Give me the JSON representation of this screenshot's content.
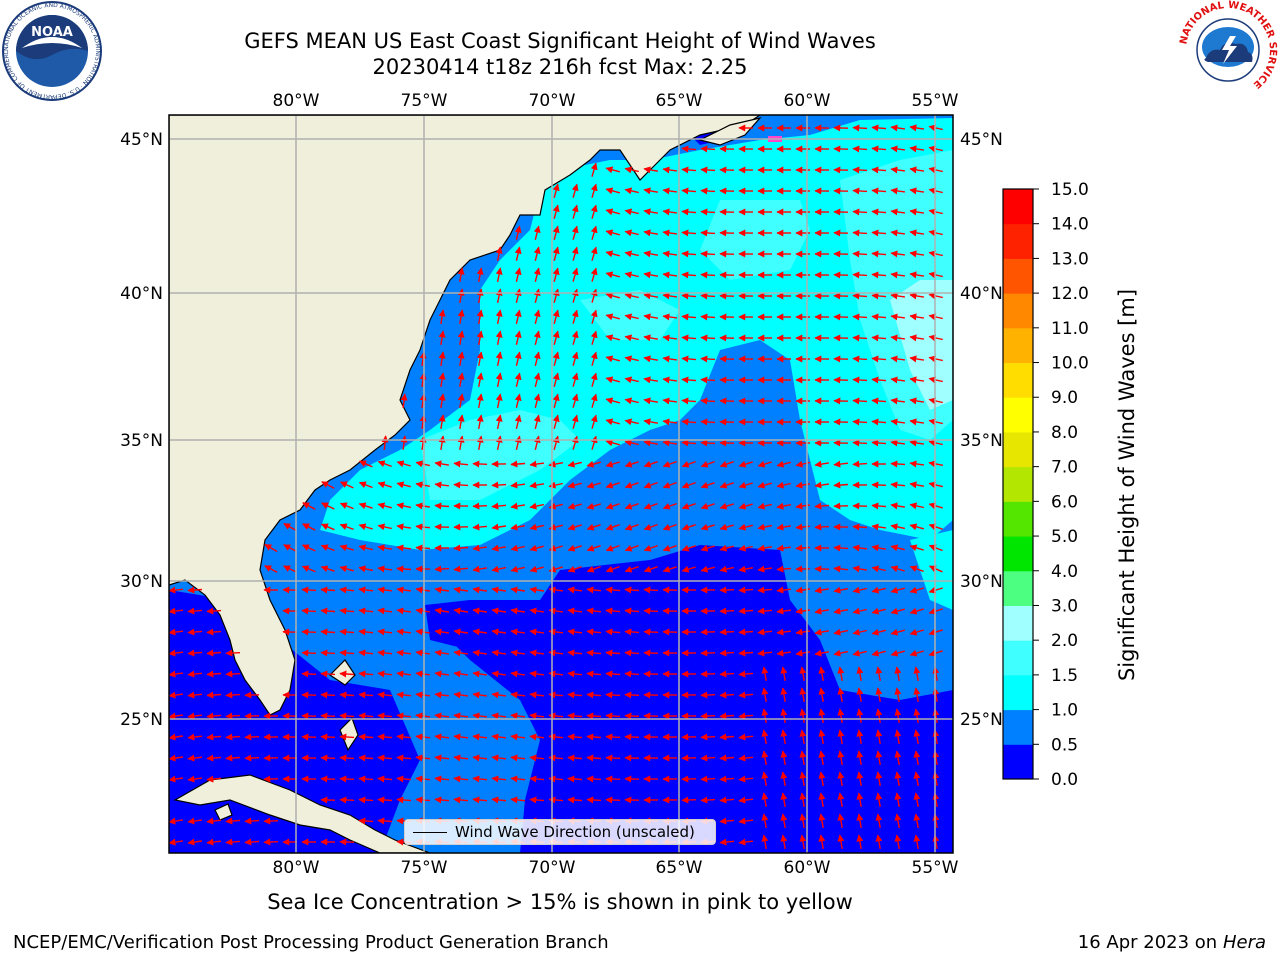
{
  "title_line1": "GEFS MEAN US East Coast Significant Height of Wind Waves",
  "title_line2": "20230414 t18z 216h fcst   Max: 2.25",
  "ice_note": "Sea Ice Concentration > 15% is shown in pink to yellow",
  "footer_left": "NCEP/EMC/Verification Post Processing Product Generation Branch",
  "footer_date": "16 Apr 2023 on ",
  "footer_host": "Hera",
  "legend_label": "Wind Wave Direction (unscaled)",
  "colorbar": {
    "label": "Significant Height of Wind Waves [m]",
    "ticks": [
      "0.0",
      "0.5",
      "1.0",
      "1.5",
      "2.0",
      "3.0",
      "4.0",
      "5.0",
      "6.0",
      "7.0",
      "8.0",
      "9.0",
      "10.0",
      "11.0",
      "12.0",
      "13.0",
      "14.0",
      "15.0"
    ],
    "colors": [
      "#0000ff",
      "#0080ff",
      "#00ffff",
      "#40ffff",
      "#a0ffff",
      "#4dff80",
      "#00e600",
      "#55e600",
      "#b3e600",
      "#e6e600",
      "#ffff00",
      "#ffdd00",
      "#ffb300",
      "#ff8800",
      "#ff5500",
      "#ff2200",
      "#ff0000"
    ]
  },
  "map": {
    "lon_labels": [
      "80°W",
      "75°W",
      "70°W",
      "65°W",
      "60°W",
      "55°W"
    ],
    "lat_labels": [
      "45°N",
      "40°N",
      "35°N",
      "30°N",
      "25°N"
    ],
    "land_color": "#efefdc",
    "arrow_color": "#ff0000",
    "ice_color": "#ff44cc"
  },
  "logos": {
    "noaa_text": "NOAA",
    "noaa_ring": "NATIONAL OCEANIC AND ATMOSPHERIC ADMINISTRATION · U.S. DEPARTMENT OF COMMERCE",
    "nws_ring": "NATIONAL WEATHER SERVICE"
  }
}
